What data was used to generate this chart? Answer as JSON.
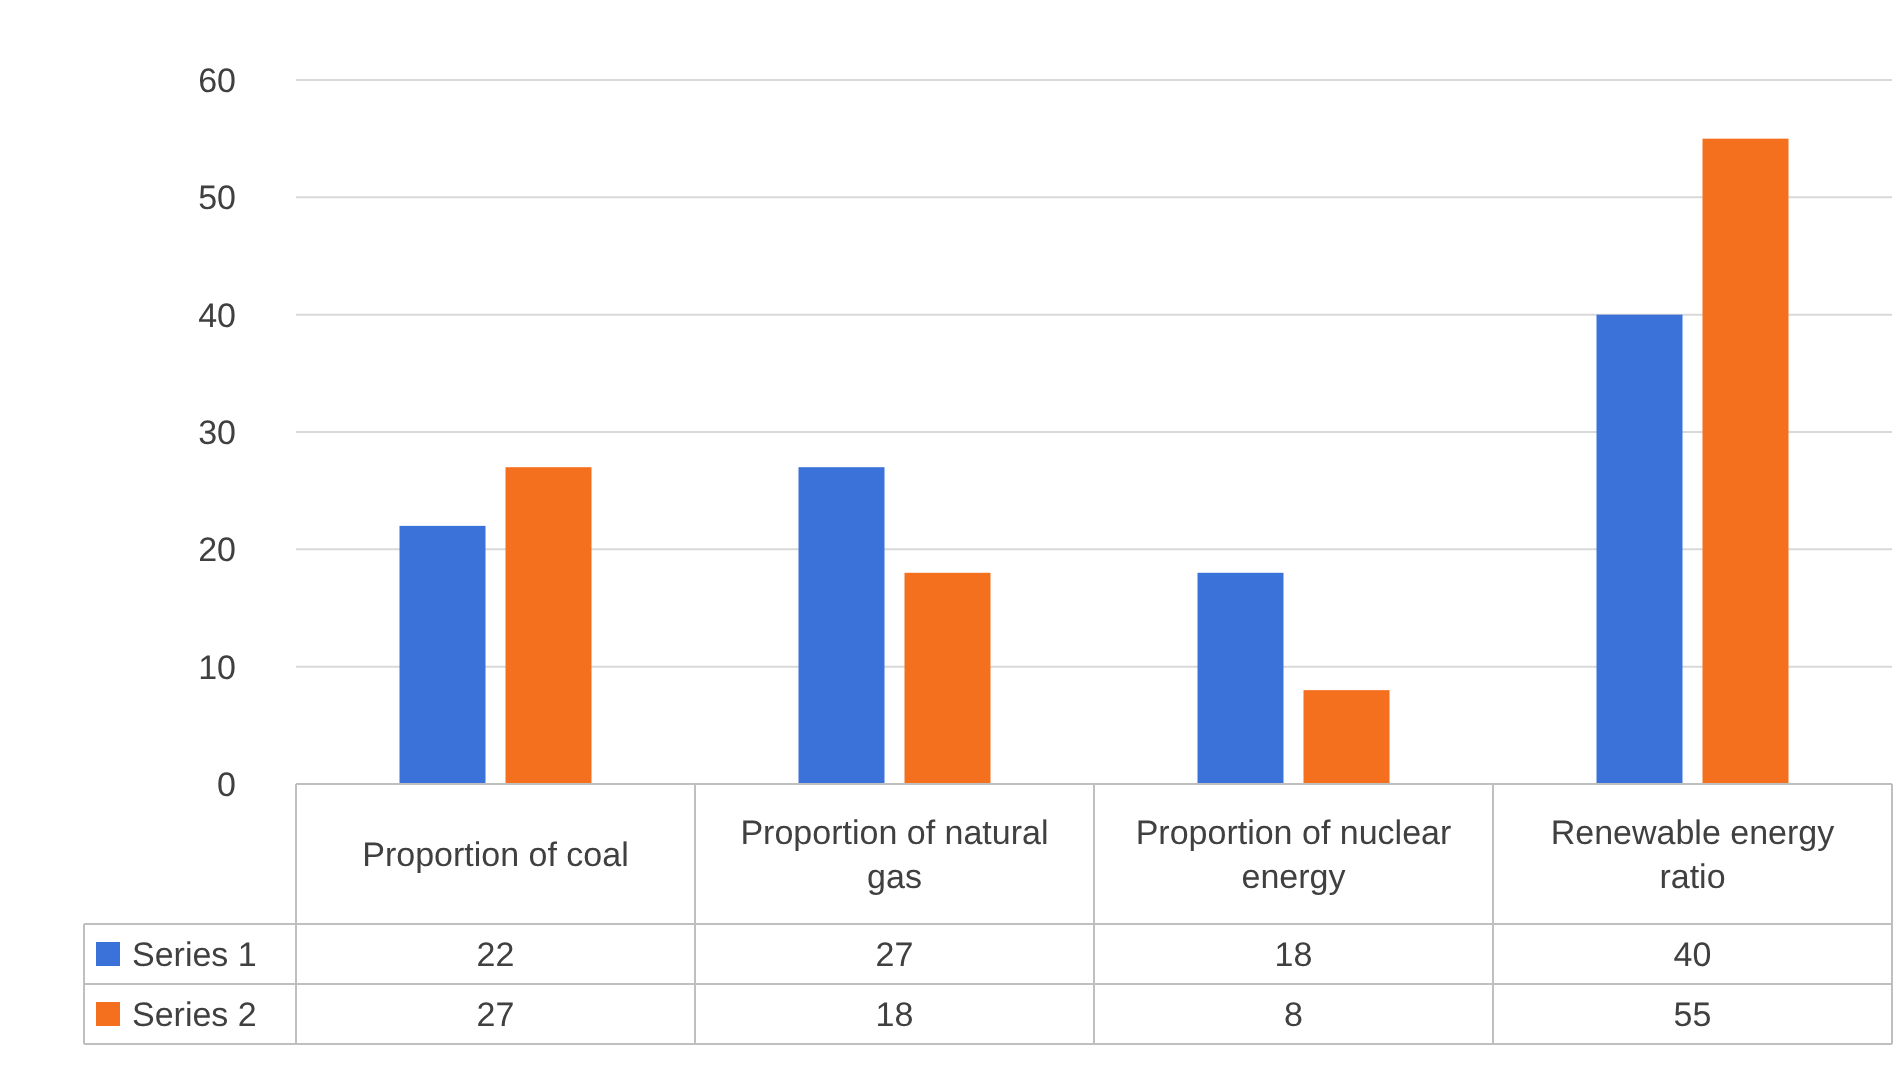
{
  "chart_data": {
    "type": "bar",
    "categories": [
      "Proportion of coal",
      "Proportion of natural gas",
      "Proportion of nuclear energy",
      "Renewable energy ratio"
    ],
    "series": [
      {
        "name": "Series 1",
        "color": "#3b72d9",
        "values": [
          22,
          27,
          18,
          40
        ]
      },
      {
        "name": "Series 2",
        "color": "#f4701e",
        "values": [
          27,
          18,
          8,
          55
        ]
      }
    ],
    "ylim": [
      0,
      60
    ],
    "yticks": [
      0,
      10,
      20,
      30,
      40,
      50,
      60
    ],
    "grid": "y",
    "legend": "bottom left",
    "data_labels": true
  }
}
